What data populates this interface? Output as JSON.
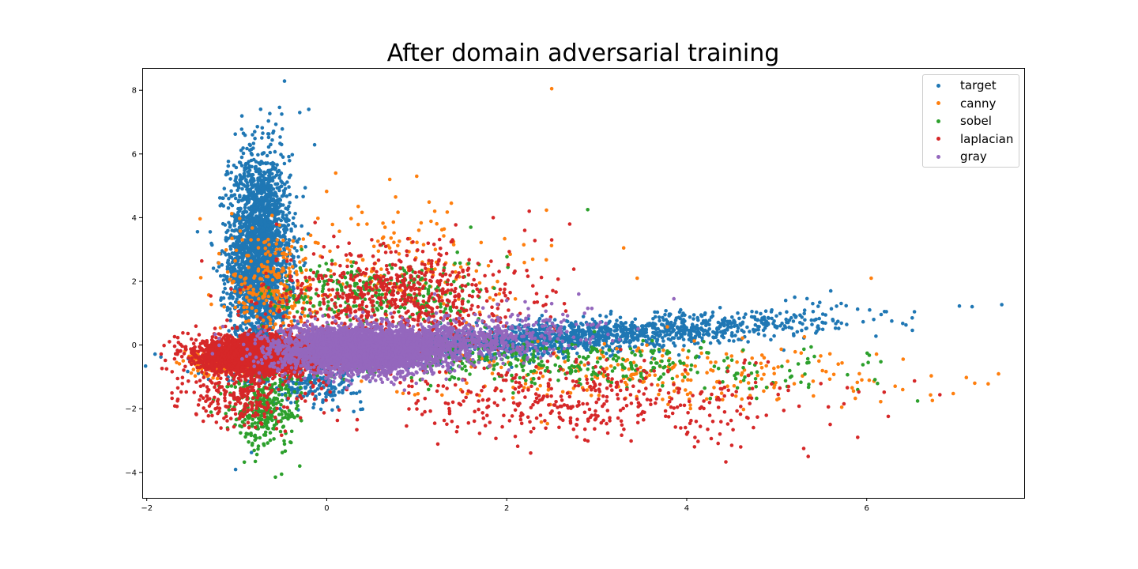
{
  "chart_data": {
    "type": "scatter",
    "title": "After domain adversarial training",
    "xlabel": "",
    "ylabel": "",
    "xlim": [
      -2.05,
      7.75
    ],
    "ylim": [
      -4.8,
      8.7
    ],
    "xticks": [
      -2,
      0,
      2,
      4,
      6
    ],
    "yticks": [
      -4,
      -2,
      0,
      2,
      4,
      6,
      8
    ],
    "grid": false,
    "legend_position": "top-right",
    "series": [
      {
        "name": "target",
        "color": "#1f77b4",
        "clusters": [
          {
            "cx": -0.75,
            "cy": 2.8,
            "sx": 0.17,
            "sy": 1.6,
            "count": 2600
          },
          {
            "cx": 2.6,
            "cy": 0.2,
            "sx": 1.5,
            "sy": 0.25,
            "count": 1700,
            "slope": 0.2
          },
          {
            "cx": -0.1,
            "cy": -1.2,
            "sx": 0.25,
            "sy": 0.3,
            "count": 200
          }
        ],
        "points": [
          [
            -0.3,
            7.3
          ],
          [
            -0.5,
            7.25
          ],
          [
            -0.2,
            7.4
          ],
          [
            -0.8,
            6.7
          ],
          [
            5.6,
            1.7
          ],
          [
            5.2,
            1.5
          ],
          [
            5.1,
            1.4
          ],
          [
            5.4,
            1.3
          ]
        ]
      },
      {
        "name": "canny",
        "color": "#ff7f0e",
        "clusters": [
          {
            "cx": -1.2,
            "cy": -0.55,
            "sx": 0.15,
            "sy": 0.18,
            "count": 300
          },
          {
            "cx": -0.6,
            "cy": 1.8,
            "sx": 0.25,
            "sy": 1.0,
            "count": 250
          },
          {
            "cx": 0.8,
            "cy": 2.4,
            "sx": 0.6,
            "sy": 1.0,
            "count": 180
          },
          {
            "cx": 3.5,
            "cy": -0.9,
            "sx": 1.5,
            "sy": 0.5,
            "count": 260
          }
        ],
        "points": [
          [
            2.5,
            8.05
          ],
          [
            0.1,
            5.4
          ],
          [
            1.0,
            5.3
          ],
          [
            0.7,
            5.2
          ],
          [
            7.2,
            -1.2
          ],
          [
            7.35,
            -1.22
          ],
          [
            6.4,
            -1.4
          ],
          [
            6.05,
            2.1
          ],
          [
            3.3,
            3.05
          ],
          [
            3.45,
            2.1
          ],
          [
            1.2,
            4.2
          ],
          [
            0.35,
            4.35
          ]
        ]
      },
      {
        "name": "sobel",
        "color": "#2ca02c",
        "clusters": [
          {
            "cx": -0.7,
            "cy": -2.0,
            "sx": 0.2,
            "sy": 0.6,
            "count": 320
          },
          {
            "cx": 0.6,
            "cy": 1.6,
            "sx": 0.6,
            "sy": 0.55,
            "count": 300
          },
          {
            "cx": 2.2,
            "cy": -0.5,
            "sx": 1.2,
            "sy": 0.35,
            "count": 350
          },
          {
            "cx": 4.4,
            "cy": -0.9,
            "sx": 0.8,
            "sy": 0.3,
            "count": 60
          }
        ],
        "points": [
          [
            -0.57,
            -4.15
          ],
          [
            -0.3,
            -3.8
          ],
          [
            2.9,
            4.25
          ],
          [
            1.6,
            3.7
          ],
          [
            5.9,
            -1.4
          ]
        ]
      },
      {
        "name": "laplacian",
        "color": "#d62728",
        "clusters": [
          {
            "cx": -0.7,
            "cy": -0.3,
            "sx": 0.35,
            "sy": 0.28,
            "count": 3200
          },
          {
            "cx": 0.8,
            "cy": 1.5,
            "sx": 0.7,
            "sy": 0.8,
            "count": 700
          },
          {
            "cx": -1.0,
            "cy": -1.6,
            "sx": 0.3,
            "sy": 0.5,
            "count": 250
          },
          {
            "cx": 2.9,
            "cy": -1.8,
            "sx": 1.3,
            "sy": 0.6,
            "count": 420
          }
        ],
        "points": [
          [
            1.85,
            4.0
          ],
          [
            2.25,
            4.2
          ],
          [
            2.7,
            3.8
          ],
          [
            5.3,
            -3.25
          ],
          [
            5.35,
            -3.5
          ],
          [
            5.9,
            -2.9
          ],
          [
            4.0,
            -2.8
          ],
          [
            4.6,
            -3.2
          ],
          [
            2.2,
            3.6
          ],
          [
            2.5,
            3.3
          ]
        ]
      },
      {
        "name": "gray",
        "color": "#9467bd",
        "clusters": [
          {
            "cx": 0.4,
            "cy": -0.15,
            "sx": 0.45,
            "sy": 0.35,
            "count": 3800
          },
          {
            "cx": 1.5,
            "cy": 0.15,
            "sx": 0.7,
            "sy": 0.35,
            "count": 700,
            "slope": 0.2
          }
        ],
        "points": [
          [
            2.8,
            1.6
          ],
          [
            2.0,
            1.4
          ],
          [
            1.2,
            1.6
          ],
          [
            2.5,
            1.3
          ]
        ]
      }
    ]
  }
}
